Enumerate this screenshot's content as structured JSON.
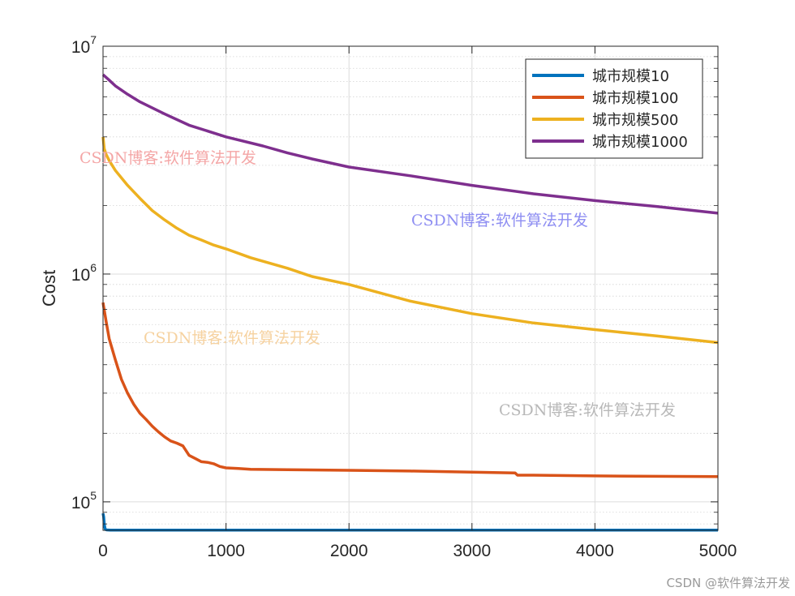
{
  "chart_data": {
    "type": "line",
    "ylabel": "Cost",
    "xlim": [
      0,
      5000
    ],
    "ylim": [
      75000,
      10000000
    ],
    "yscale": "log",
    "grid": true,
    "minor_grid": true,
    "legend_position": "top-right",
    "x_ticks": [
      0,
      1000,
      2000,
      3000,
      4000,
      5000
    ],
    "x_tick_labels": [
      "0",
      "1000",
      "2000",
      "3000",
      "4000",
      "5000"
    ],
    "y_ticks": [
      100000,
      1000000,
      10000000
    ],
    "y_tick_labels": [
      {
        "base": "10",
        "exp": "5"
      },
      {
        "base": "10",
        "exp": "6"
      },
      {
        "base": "10",
        "exp": "7"
      }
    ],
    "series": [
      {
        "name": "城市规模10",
        "color": "#0072BD",
        "x": [
          0,
          5,
          10,
          15,
          20,
          30,
          60,
          100,
          1000,
          2000,
          3000,
          4000,
          5000
        ],
        "y": [
          89000,
          86000,
          80000,
          77000,
          75600,
          75300,
          75200,
          75200,
          75200,
          75200,
          75200,
          75200,
          75200
        ]
      },
      {
        "name": "城市规模100",
        "color": "#D95319",
        "x": [
          0,
          25,
          50,
          100,
          150,
          200,
          250,
          300,
          350,
          400,
          450,
          500,
          550,
          600,
          650,
          700,
          750,
          800,
          850,
          900,
          950,
          1000,
          1100,
          1200,
          1500,
          2000,
          2500,
          3000,
          3350,
          3370,
          3500,
          4000,
          4500,
          5000
        ],
        "y": [
          750000,
          620000,
          520000,
          420000,
          345000,
          300000,
          268000,
          245000,
          230000,
          215000,
          203000,
          193000,
          185000,
          181000,
          176000,
          160000,
          155000,
          150000,
          149000,
          147000,
          143000,
          141000,
          140000,
          139000,
          138500,
          137500,
          136500,
          135000,
          134000,
          131000,
          131000,
          130000,
          129500,
          129000
        ]
      },
      {
        "name": "城市规模500",
        "color": "#EDB120",
        "x": [
          0,
          10,
          25,
          50,
          100,
          200,
          300,
          400,
          500,
          600,
          700,
          800,
          900,
          1000,
          1200,
          1500,
          1700,
          2000,
          2100,
          2500,
          3000,
          3500,
          4000,
          4500,
          5000
        ],
        "y": [
          4000000,
          3550000,
          3350000,
          3150000,
          2850000,
          2450000,
          2150000,
          1900000,
          1730000,
          1590000,
          1480000,
          1410000,
          1340000,
          1290000,
          1180000,
          1060000,
          975000,
          900000,
          870000,
          760000,
          670000,
          610000,
          570000,
          535000,
          500000
        ]
      },
      {
        "name": "城市规模1000",
        "color": "#7E2F8E",
        "x": [
          0,
          50,
          100,
          200,
          300,
          500,
          700,
          1000,
          1300,
          1500,
          1700,
          2000,
          2500,
          3000,
          3500,
          4000,
          4500,
          5000
        ],
        "y": [
          7500000,
          7100000,
          6700000,
          6150000,
          5700000,
          5050000,
          4500000,
          4000000,
          3650000,
          3400000,
          3200000,
          2950000,
          2700000,
          2450000,
          2250000,
          2100000,
          1980000,
          1850000
        ]
      }
    ]
  },
  "watermarks": [
    {
      "text": "CSDN博客:软件算法开发",
      "color": "#f4a6a6"
    },
    {
      "text": "CSDN博客:软件算法开发",
      "color": "#8e8ef2"
    },
    {
      "text": "CSDN博客:软件算法开发",
      "color": "#f6d2a0"
    },
    {
      "text": "CSDN博客:软件算法开发",
      "color": "#b8b8b8"
    }
  ],
  "corner_watermark": "CSDN @软件算法开发"
}
